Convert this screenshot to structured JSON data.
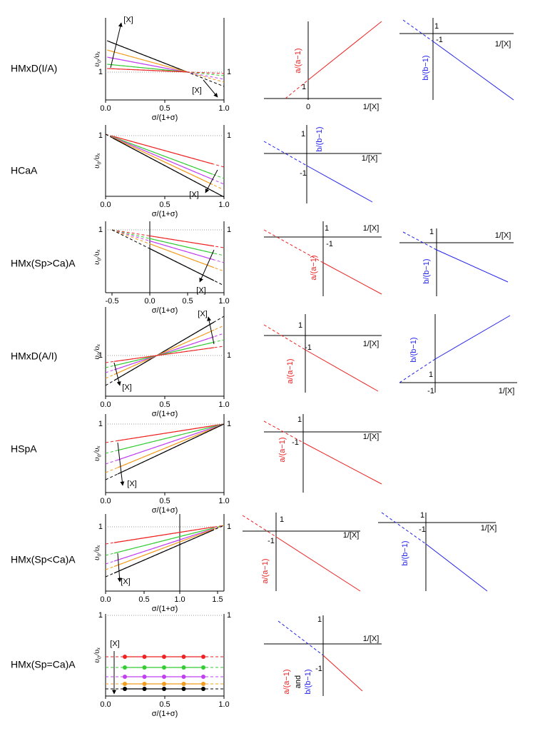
{
  "rows": [
    {
      "label": "HMxD(I/A)",
      "left": {
        "texts": [
          "υ₀/υₓ",
          "1",
          "1",
          "0.0",
          "0.5",
          "1.0",
          "σ/(1+σ)",
          "[X]",
          "[X]"
        ]
      },
      "middle": {
        "texts": [
          "a/(a−1)",
          "1",
          "0",
          "1/[X]"
        ]
      },
      "right": {
        "texts": [
          "1",
          "-1",
          "1/[X]",
          "b/(b−1)"
        ]
      }
    },
    {
      "label": "HCaA",
      "left": {
        "texts": [
          "υ₀/υₓ",
          "1",
          "1",
          "0.0",
          "0.5",
          "1.0",
          "σ/(1+σ)",
          "[X]"
        ]
      },
      "middle": {
        "texts": [
          "1",
          "b/(b−1)",
          "1/[X]",
          "-1"
        ]
      }
    },
    {
      "label": "HMx(Sp>Ca)A",
      "left": {
        "texts": [
          "υ₀/υₓ",
          "1",
          "1",
          "-0.5",
          "0.0",
          "0.5",
          "1.0",
          "σ/(1+σ)",
          "[X]"
        ]
      },
      "middle": {
        "texts": [
          "1/[X]",
          "1",
          "-1",
          "a/(a−1)"
        ]
      },
      "right": {
        "texts": [
          "1",
          "1/[X]",
          "b/(b−1)"
        ]
      }
    },
    {
      "label": "HMxD(A/I)",
      "left": {
        "texts": [
          "υ₀/υₓ",
          "1",
          "1",
          "0.0",
          "0.5",
          "1.0",
          "σ/(1+σ)",
          "[X]",
          "[X]"
        ]
      },
      "middle": {
        "texts": [
          "1",
          "-1",
          "1/[X]",
          "a/(a−1)"
        ]
      },
      "right": {
        "texts": [
          "b/(b−1)",
          "1",
          "-1",
          "1/[X]"
        ]
      }
    },
    {
      "label": "HSpA",
      "left": {
        "texts": [
          "υ₀/υₓ",
          "1",
          "1",
          "0.0",
          "0.5",
          "1.0",
          "σ/(1+σ)",
          "[X]"
        ]
      },
      "middle": {
        "texts": [
          "1",
          "-1",
          "1/[X]",
          "a/(a−1)"
        ]
      }
    },
    {
      "label": "HMx(Sp<Ca)A",
      "left": {
        "texts": [
          "υ₀/υₓ",
          "1",
          "1",
          "0.0",
          "0.5",
          "1.0",
          "1.5",
          "σ/(1+σ)",
          "[X]"
        ]
      },
      "middle": {
        "texts": [
          "1",
          "-1",
          "1/[X]",
          "a/(a−1)"
        ]
      },
      "right": {
        "texts": [
          "1",
          "-1",
          "1/[X]",
          "b/(b−1)"
        ]
      }
    },
    {
      "label": "HMx(Sp=Ca)A",
      "left": {
        "texts": [
          "υ₀/υₓ",
          "1",
          "1",
          "0.0",
          "0.5",
          "1.0",
          "σ/(1+σ)",
          "[X]"
        ]
      },
      "middle": {
        "texts": [
          "1",
          "1/[X]",
          "-1",
          "a/(a−1)",
          "and",
          "b/(b−1)"
        ]
      }
    }
  ]
}
